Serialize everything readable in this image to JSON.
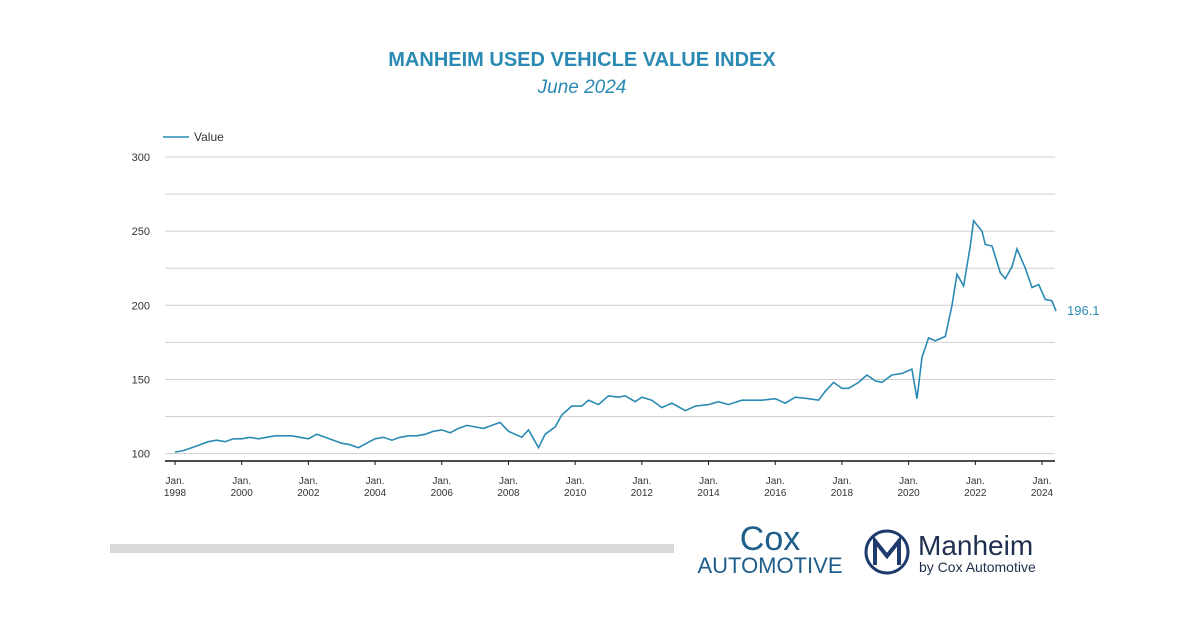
{
  "chart_data": {
    "type": "line",
    "title": "MANHEIM USED VEHICLE VALUE INDEX",
    "subtitle": "June 2024",
    "legend": "top-left",
    "series": [
      {
        "name": "Value",
        "color": "#2a8ab3",
        "x": [
          1998,
          1998.25,
          1998.5,
          1998.75,
          1999,
          1999.25,
          1999.5,
          1999.75,
          2000,
          2000.25,
          2000.5,
          2000.75,
          2001,
          2001.25,
          2001.5,
          2001.75,
          2002,
          2002.25,
          2002.5,
          2002.75,
          2003,
          2003.25,
          2003.5,
          2003.75,
          2004,
          2004.25,
          2004.5,
          2004.75,
          2005,
          2005.25,
          2005.5,
          2005.75,
          2006,
          2006.25,
          2006.5,
          2006.75,
          2007,
          2007.25,
          2007.5,
          2007.75,
          2008,
          2008.4,
          2008.6,
          2008.9,
          2009.1,
          2009.4,
          2009.6,
          2009.9,
          2010.2,
          2010.4,
          2010.7,
          2011,
          2011.3,
          2011.5,
          2011.8,
          2012,
          2012.3,
          2012.6,
          2012.9,
          2013.3,
          2013.6,
          2014,
          2014.3,
          2014.6,
          2015,
          2015.3,
          2015.6,
          2016,
          2016.3,
          2016.6,
          2017,
          2017.3,
          2017.5,
          2017.75,
          2018,
          2018.2,
          2018.5,
          2018.75,
          2019,
          2019.2,
          2019.5,
          2019.8,
          2020.1,
          2020.25,
          2020.4,
          2020.6,
          2020.8,
          2021.1,
          2021.3,
          2021.45,
          2021.65,
          2021.85,
          2021.95,
          2022.2,
          2022.3,
          2022.5,
          2022.75,
          2022.9,
          2023.1,
          2023.25,
          2023.5,
          2023.7,
          2023.9,
          2024.1,
          2024.3,
          2024.42
        ],
        "values": [
          101,
          102,
          104,
          106,
          108,
          109,
          108,
          110,
          110,
          111,
          110,
          111,
          112,
          112,
          112,
          111,
          110,
          113,
          111,
          109,
          107,
          106,
          104,
          107,
          110,
          111,
          109,
          111,
          112,
          112,
          113,
          115,
          116,
          114,
          117,
          119,
          118,
          117,
          119,
          121,
          115,
          111,
          116,
          104,
          113,
          118,
          126,
          132,
          132,
          136,
          133,
          139,
          138,
          139,
          135,
          138,
          136,
          131,
          134,
          129,
          132,
          133,
          135,
          133,
          136,
          136,
          136,
          137,
          134,
          138,
          137,
          136,
          142,
          148,
          144,
          144,
          148,
          153,
          149,
          148,
          153,
          154,
          157,
          137,
          165,
          178,
          176,
          179,
          200,
          221,
          213,
          240,
          257,
          250,
          241,
          240,
          222,
          218,
          226,
          238,
          225,
          212,
          214,
          204,
          203,
          196.1
        ],
        "end_label": "196.1"
      }
    ],
    "xlim": [
      1997.8,
      2024.9
    ],
    "xticks": [
      {
        "value": 1998,
        "label": "Jan. 1998"
      },
      {
        "value": 2000,
        "label": "Jan. 2000"
      },
      {
        "value": 2002,
        "label": "Jan. 2002"
      },
      {
        "value": 2004,
        "label": "Jan. 2004"
      },
      {
        "value": 2006,
        "label": "Jan. 2006"
      },
      {
        "value": 2008,
        "label": "Jan. 2008"
      },
      {
        "value": 2010,
        "label": "Jan. 2010"
      },
      {
        "value": 2012,
        "label": "Jan. 2012"
      },
      {
        "value": 2014,
        "label": "Jan. 2014"
      },
      {
        "value": 2016,
        "label": "Jan. 2016"
      },
      {
        "value": 2018,
        "label": "Jan. 2018"
      },
      {
        "value": 2020,
        "label": "Jan. 2020"
      },
      {
        "value": 2022,
        "label": "Jan. 2022"
      },
      {
        "value": 2024,
        "label": "Jan. 2024"
      }
    ],
    "ylim": [
      95,
      300
    ],
    "yticks": [
      100,
      150,
      200,
      250,
      300
    ],
    "ygrid": [
      100,
      125,
      150,
      175,
      200,
      225,
      250,
      275,
      300
    ],
    "grid": true
  },
  "footer": {
    "cox_top": "Cox",
    "cox_bottom": "Automotive",
    "manheim": "Manheim",
    "manheim_sub": "by Cox Automotive"
  }
}
